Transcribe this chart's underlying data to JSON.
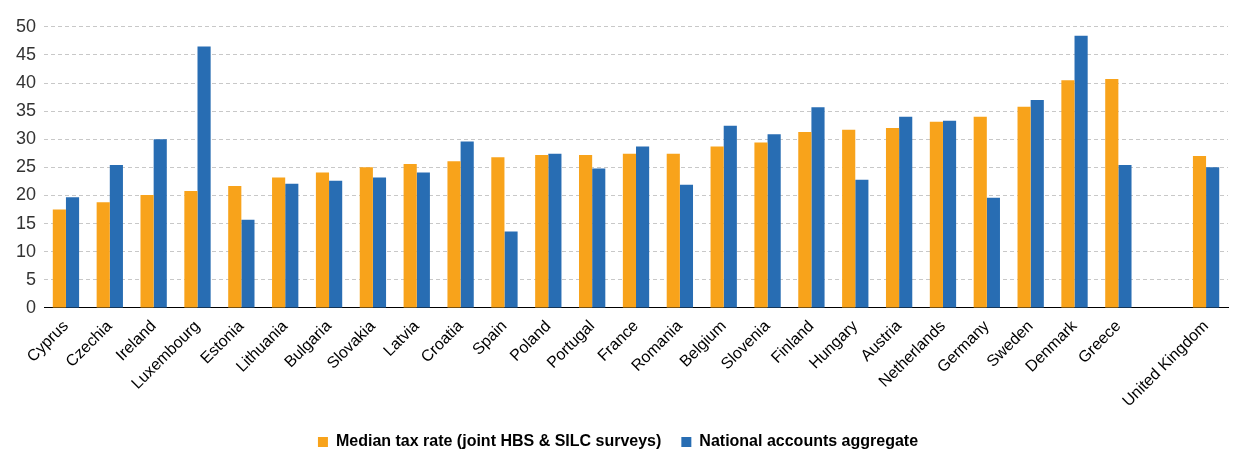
{
  "chart_data": {
    "type": "bar",
    "categories": [
      "Cyprus",
      "Czechia",
      "Ireland",
      "Luxembourg",
      "Estonia",
      "Lithuania",
      "Bulgaria",
      "Slovakia",
      "Latvia",
      "Croatia",
      "Spain",
      "Poland",
      "Portugal",
      "France",
      "Romania",
      "Belgium",
      "Slovenia",
      "Finland",
      "Hungary",
      "Austria",
      "Netherlands",
      "Germany",
      "Sweden",
      "Denmark",
      "Greece",
      null,
      "United Kingdom"
    ],
    "series": [
      {
        "name": "Median tax rate (joint HBS & SILC surveys)",
        "color": "#f8a31b",
        "values": [
          17.5,
          18.8,
          20.1,
          20.8,
          21.7,
          23.2,
          24.1,
          25,
          25.6,
          26.1,
          26.8,
          27.2,
          27.2,
          27.4,
          27.4,
          28.7,
          29.4,
          31.3,
          31.7,
          32,
          33.1,
          34,
          35.8,
          40.5,
          40.7,
          null,
          27
        ]
      },
      {
        "name": "National accounts aggregate",
        "color": "#286db3",
        "values": [
          19.7,
          25.4,
          30,
          46.5,
          15.7,
          22.1,
          22.6,
          23.2,
          24.1,
          29.6,
          13.6,
          27.4,
          24.8,
          28.7,
          21.9,
          32.4,
          30.9,
          35.7,
          22.8,
          34,
          33.3,
          19.6,
          37,
          48.4,
          25.4,
          null,
          25
        ]
      }
    ],
    "ylim": [
      0,
      50
    ],
    "yticks": [
      0,
      5,
      10,
      15,
      20,
      25,
      30,
      35,
      40,
      45,
      50
    ],
    "grid": "y",
    "legend": "bottom"
  }
}
